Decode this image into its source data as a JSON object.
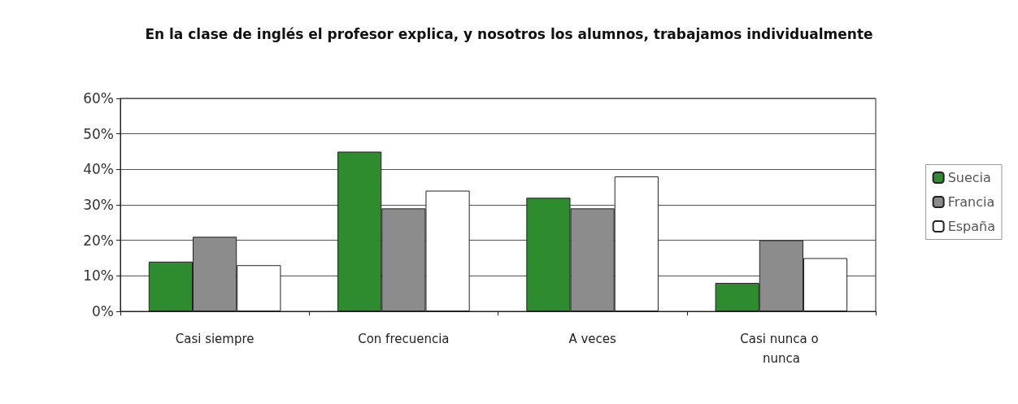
{
  "chart_data": {
    "type": "bar",
    "title": "En la clase de inglés el profesor explica, y nosotros los alumnos, trabajamos individualmente",
    "categories": [
      "Casi siempre",
      "Con frecuencia",
      "A veces",
      "Casi nunca o nunca"
    ],
    "series": [
      {
        "name": "Suecia",
        "color": "#2e8b2e",
        "values": [
          14,
          45,
          32,
          8
        ]
      },
      {
        "name": "Francia",
        "color": "#8c8c8c",
        "values": [
          21,
          29,
          29,
          20
        ]
      },
      {
        "name": "España",
        "color": "#ffffff",
        "values": [
          13,
          34,
          38,
          15
        ]
      }
    ],
    "ylim": [
      0,
      60
    ],
    "yticks": [
      {
        "value": 0,
        "label": "0%"
      },
      {
        "value": 10,
        "label": "10%"
      },
      {
        "value": 20,
        "label": "20%"
      },
      {
        "value": 30,
        "label": "30%"
      },
      {
        "value": 40,
        "label": "40%"
      },
      {
        "value": 50,
        "label": "50%"
      },
      {
        "value": 60,
        "label": "60%"
      }
    ],
    "grid": "y",
    "legend": "right"
  }
}
